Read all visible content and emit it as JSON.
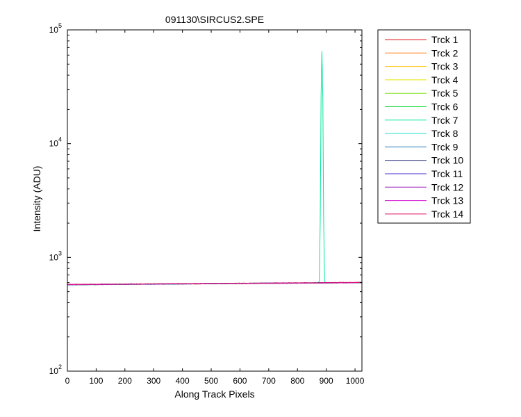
{
  "chart_data": {
    "type": "line",
    "title": "091130\\SIRCUS2.SPE",
    "xlabel": "Along Track Pixels",
    "ylabel": "Intensity (ADU)",
    "xlim": [
      0,
      1024
    ],
    "ylim": [
      100,
      100000
    ],
    "yscale": "log",
    "grid": false,
    "legend_position": "outside-right",
    "x_ticks": [
      0,
      100,
      200,
      300,
      400,
      500,
      600,
      700,
      800,
      900,
      1000
    ],
    "y_ticks": [
      {
        "base": "10",
        "exp": "2",
        "value": 100
      },
      {
        "base": "10",
        "exp": "3",
        "value": 1000
      },
      {
        "base": "10",
        "exp": "4",
        "value": 10000
      },
      {
        "base": "10",
        "exp": "5",
        "value": 100000
      }
    ],
    "series": [
      {
        "name": "Trck 1",
        "color": "#e41a1c",
        "baseline": [
          [
            0,
            575
          ],
          [
            1024,
            600
          ]
        ]
      },
      {
        "name": "Trck 2",
        "color": "#ff7f0e",
        "baseline": [
          [
            0,
            576
          ],
          [
            1024,
            601
          ]
        ]
      },
      {
        "name": "Trck 3",
        "color": "#ffc000",
        "baseline": [
          [
            0,
            577
          ],
          [
            1024,
            601
          ]
        ]
      },
      {
        "name": "Trck 4",
        "color": "#e6e600",
        "baseline": [
          [
            0,
            576
          ],
          [
            1024,
            600
          ]
        ]
      },
      {
        "name": "Trck 5",
        "color": "#80e020",
        "baseline": [
          [
            0,
            575
          ],
          [
            1024,
            600
          ]
        ]
      },
      {
        "name": "Trck 6",
        "color": "#20e040",
        "baseline": [
          [
            0,
            576
          ],
          [
            1024,
            601
          ]
        ]
      },
      {
        "name": "Trck 7",
        "color": "#00e59a",
        "baseline": [
          [
            0,
            574
          ],
          [
            1024,
            600
          ]
        ],
        "peak": {
          "x": 885,
          "y": 65000
        }
      },
      {
        "name": "Trck 8",
        "color": "#20e0d0",
        "baseline": [
          [
            0,
            576
          ],
          [
            1024,
            600
          ]
        ]
      },
      {
        "name": "Trck 9",
        "color": "#1f77b4",
        "baseline": [
          [
            0,
            575
          ],
          [
            1024,
            600
          ]
        ]
      },
      {
        "name": "Trck 10",
        "color": "#1a1a6e",
        "baseline": [
          [
            0,
            577
          ],
          [
            1024,
            601
          ]
        ]
      },
      {
        "name": "Trck 11",
        "color": "#4b2bd0",
        "baseline": [
          [
            0,
            576
          ],
          [
            1024,
            600
          ]
        ]
      },
      {
        "name": "Trck 12",
        "color": "#9a1ab8",
        "baseline": [
          [
            0,
            576
          ],
          [
            1024,
            601
          ]
        ]
      },
      {
        "name": "Trck 13",
        "color": "#d41ad4",
        "baseline": [
          [
            0,
            577
          ],
          [
            1024,
            600
          ]
        ]
      },
      {
        "name": "Trck 14",
        "color": "#e0106a",
        "baseline": [
          [
            0,
            578
          ],
          [
            1024,
            602
          ]
        ]
      }
    ]
  }
}
